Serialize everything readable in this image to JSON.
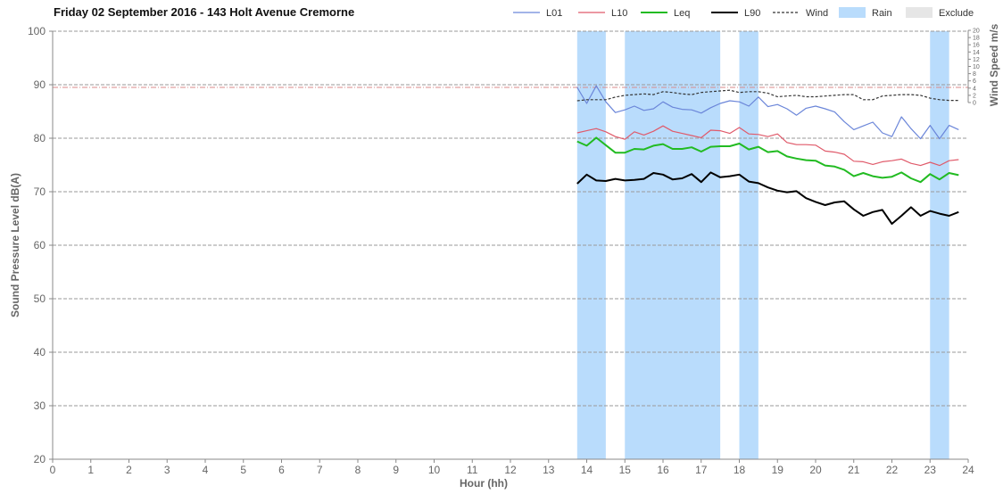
{
  "chart_data": {
    "type": "line",
    "title": "Friday 02 September 2016 - 143 Holt Avenue Cremorne",
    "xlabel": "Hour (hh)",
    "ylabel": "Sound Pressure Level dB(A)",
    "y2label": "Wind Speed  m/s",
    "xlim": [
      0,
      24
    ],
    "ylim": [
      20,
      100
    ],
    "y2lim": [
      0,
      20
    ],
    "xticks": [
      "0",
      "1",
      "2",
      "3",
      "4",
      "5",
      "6",
      "7",
      "8",
      "9",
      "10",
      "11",
      "12",
      "13",
      "14",
      "15",
      "16",
      "17",
      "18",
      "19",
      "20",
      "21",
      "22",
      "23",
      "24"
    ],
    "yticks": [
      "20",
      "30",
      "40",
      "50",
      "60",
      "70",
      "80",
      "90",
      "100"
    ],
    "y2ticks": [
      "0",
      "2",
      "4",
      "6",
      "8",
      "10",
      "12",
      "14",
      "16",
      "18",
      "20"
    ],
    "grid": true,
    "legend_position": "top-right",
    "reference_line_y": 89.5,
    "colors": {
      "L01": "#6b86d9",
      "L10": "#e05a6a",
      "Leq": "#22bb22",
      "L90": "#000000",
      "Wind": "#333333",
      "Rain": "#b9dcfc",
      "Exclude": "#e6e6e6",
      "grid": "#9a9a9a",
      "reference": "#d98a8a"
    },
    "legend": [
      {
        "name": "L01",
        "kind": "line",
        "color": "#6b86d9"
      },
      {
        "name": "L10",
        "kind": "line",
        "color": "#e05a6a"
      },
      {
        "name": "Leq",
        "kind": "line",
        "color": "#22bb22"
      },
      {
        "name": "L90",
        "kind": "line",
        "color": "#000000"
      },
      {
        "name": "Wind",
        "kind": "dashed",
        "color": "#333333"
      },
      {
        "name": "Rain",
        "kind": "box",
        "color": "#b9dcfc"
      },
      {
        "name": "Exclude",
        "kind": "box",
        "color": "#e6e6e6"
      }
    ],
    "rain_periods": [
      [
        13.75,
        14.5
      ],
      [
        15.0,
        17.5
      ],
      [
        18.0,
        18.5
      ],
      [
        23.0,
        23.5
      ]
    ],
    "x": [
      13.75,
      14.0,
      14.25,
      14.5,
      14.75,
      15.0,
      15.25,
      15.5,
      15.75,
      16.0,
      16.25,
      16.5,
      16.75,
      17.0,
      17.25,
      17.5,
      17.75,
      18.0,
      18.25,
      18.5,
      18.75,
      19.0,
      19.25,
      19.5,
      19.75,
      20.0,
      20.25,
      20.5,
      20.75,
      21.0,
      21.25,
      21.5,
      21.75,
      22.0,
      22.25,
      22.5,
      22.75,
      23.0,
      23.25,
      23.5,
      23.75
    ],
    "series": [
      {
        "name": "L01",
        "axis": "left",
        "values": [
          89.5,
          86.5,
          89.8,
          86.8,
          84.8,
          85.3,
          86.0,
          85.2,
          85.5,
          86.8,
          85.8,
          85.4,
          85.3,
          84.7,
          85.7,
          86.5,
          87.0,
          86.8,
          86.0,
          87.7,
          85.9,
          86.3,
          85.5,
          84.3,
          85.6,
          86.0,
          85.5,
          84.9,
          83.1,
          81.6,
          82.3,
          83.0,
          81.0,
          80.3,
          84.0,
          81.8,
          79.9,
          82.4,
          79.9,
          82.4,
          81.6
        ]
      },
      {
        "name": "L10",
        "axis": "left",
        "values": [
          81.0,
          81.4,
          81.8,
          81.2,
          80.3,
          79.8,
          81.2,
          80.6,
          81.3,
          82.3,
          81.3,
          80.9,
          80.5,
          80.1,
          81.5,
          81.4,
          80.9,
          82.0,
          80.8,
          80.7,
          80.3,
          80.8,
          79.2,
          78.8,
          78.8,
          78.7,
          77.6,
          77.4,
          77.0,
          75.7,
          75.6,
          75.1,
          75.6,
          75.8,
          76.1,
          75.3,
          74.9,
          75.5,
          74.9,
          75.8,
          76.0
        ]
      },
      {
        "name": "Leq",
        "axis": "left",
        "values": [
          79.4,
          78.6,
          80.1,
          78.7,
          77.3,
          77.3,
          78.0,
          77.9,
          78.6,
          78.9,
          78.0,
          78.0,
          78.3,
          77.5,
          78.4,
          78.5,
          78.5,
          79.0,
          77.9,
          78.4,
          77.4,
          77.6,
          76.6,
          76.2,
          75.9,
          75.8,
          74.9,
          74.7,
          74.1,
          72.9,
          73.5,
          72.9,
          72.6,
          72.8,
          73.6,
          72.5,
          71.8,
          73.3,
          72.3,
          73.5,
          73.1
        ]
      },
      {
        "name": "L90",
        "axis": "left",
        "values": [
          71.5,
          73.2,
          72.1,
          72.0,
          72.4,
          72.1,
          72.2,
          72.4,
          73.5,
          73.2,
          72.3,
          72.5,
          73.3,
          71.8,
          73.6,
          72.7,
          72.9,
          73.2,
          71.9,
          71.6,
          70.8,
          70.2,
          69.9,
          70.1,
          68.8,
          68.1,
          67.5,
          68.0,
          68.2,
          66.7,
          65.5,
          66.2,
          66.6,
          64.0,
          65.5,
          67.1,
          65.5,
          66.4,
          65.9,
          65.5,
          66.2
        ]
      },
      {
        "name": "Wind",
        "axis": "right",
        "values": [
          0.5,
          0.8,
          0.8,
          0.8,
          1.5,
          2.0,
          2.2,
          2.4,
          2.2,
          3.0,
          2.8,
          2.4,
          2.2,
          2.8,
          3.0,
          3.2,
          3.4,
          2.8,
          3.0,
          3.0,
          2.6,
          1.6,
          1.8,
          2.0,
          1.6,
          1.6,
          1.8,
          2.0,
          2.2,
          2.2,
          0.8,
          0.8,
          1.8,
          2.0,
          2.2,
          2.2,
          2.0,
          1.2,
          0.8,
          0.6,
          0.6
        ]
      }
    ]
  }
}
